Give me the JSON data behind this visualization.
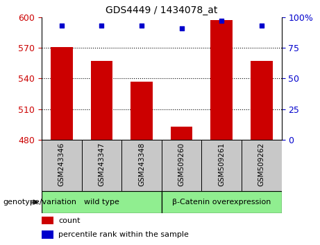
{
  "title": "GDS4449 / 1434078_at",
  "categories": [
    "GSM243346",
    "GSM243347",
    "GSM243348",
    "GSM509260",
    "GSM509261",
    "GSM509262"
  ],
  "bar_values": [
    571,
    557,
    537,
    493,
    597,
    557
  ],
  "percentile_values": [
    93,
    93,
    93,
    91,
    97,
    93
  ],
  "ylim_left": [
    480,
    600
  ],
  "ylim_right": [
    0,
    100
  ],
  "yticks_left": [
    480,
    510,
    540,
    570,
    600
  ],
  "yticks_right": [
    0,
    25,
    50,
    75,
    100
  ],
  "ytick_labels_right": [
    "0",
    "25",
    "50",
    "75",
    "100%"
  ],
  "bar_color": "#cc0000",
  "marker_color": "#0000cc",
  "left_tick_color": "#cc0000",
  "right_tick_color": "#0000cc",
  "grid_ticks": [
    510,
    540,
    570
  ],
  "group1_label": "wild type",
  "group2_label": "β-Catenin overexpression",
  "group1_count": 3,
  "group2_count": 3,
  "group_box_color": "#90ee90",
  "xticklabel_bg": "#c8c8c8",
  "legend_count_label": "count",
  "legend_percentile_label": "percentile rank within the sample",
  "genotype_label": "genotype/variation"
}
